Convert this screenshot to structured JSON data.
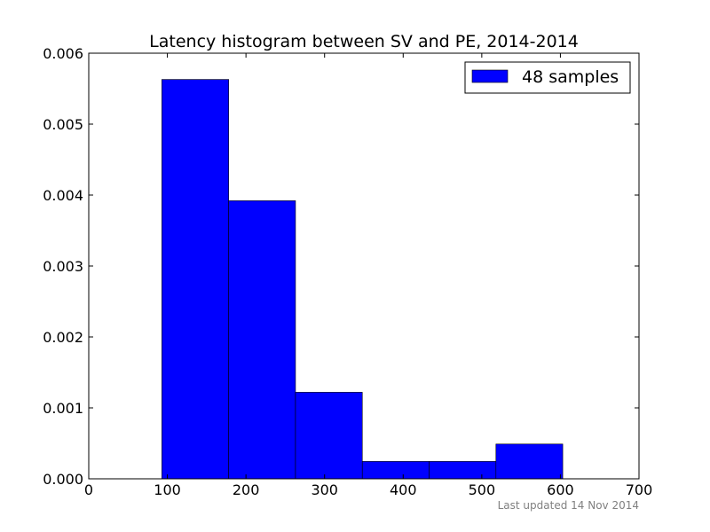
{
  "chart_data": {
    "type": "bar",
    "title": "Latency histogram between SV and PE, 2014-2014",
    "xlabel": "",
    "ylabel": "",
    "xlim": [
      0,
      700
    ],
    "ylim": [
      0,
      0.006
    ],
    "x_ticks": [
      0,
      100,
      200,
      300,
      400,
      500,
      600,
      700
    ],
    "x_tick_labels": [
      "0",
      "100",
      "200",
      "300",
      "400",
      "500",
      "600",
      "700"
    ],
    "y_ticks": [
      0,
      0.001,
      0.002,
      0.003,
      0.004,
      0.005,
      0.006
    ],
    "y_tick_labels": [
      "0.000",
      "0.001",
      "0.002",
      "0.003",
      "0.004",
      "0.005",
      "0.006"
    ],
    "bins": [
      {
        "start": 93,
        "end": 178,
        "value": 0.00563
      },
      {
        "start": 178,
        "end": 263,
        "value": 0.00392
      },
      {
        "start": 263,
        "end": 348,
        "value": 0.00122
      },
      {
        "start": 348,
        "end": 433,
        "value": 0.000245
      },
      {
        "start": 433,
        "end": 518,
        "value": 0.000245
      },
      {
        "start": 518,
        "end": 603,
        "value": 0.00049
      }
    ],
    "series": [
      {
        "name": "48 samples",
        "color": "#0000ff"
      }
    ],
    "legend": "top-right",
    "grid": false
  },
  "footer": {
    "text": "Last updated 14 Nov 2014"
  }
}
